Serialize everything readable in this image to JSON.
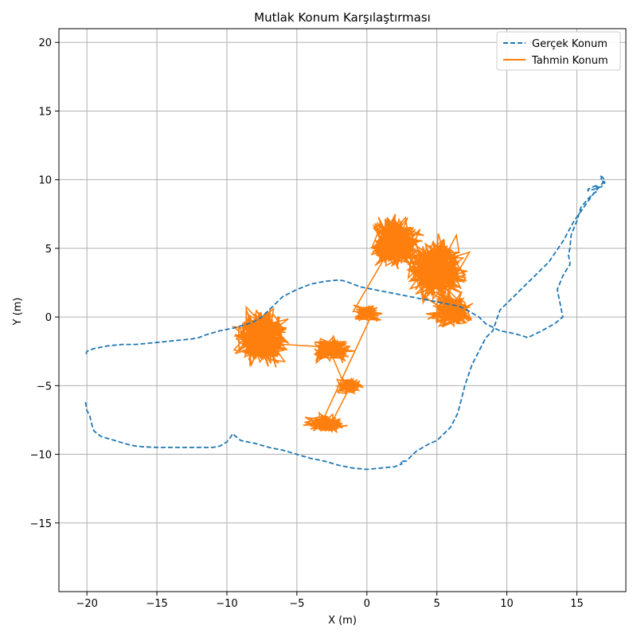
{
  "chart_data": {
    "type": "line",
    "title": "Mutlak Konum Karşılaştırması",
    "xlabel": "X (m)",
    "ylabel": "Y (m)",
    "xlim": [
      -22,
      18.5
    ],
    "ylim": [
      -20,
      21
    ],
    "xticks": [
      -20,
      -15,
      -10,
      -5,
      0,
      5,
      10,
      15
    ],
    "yticks": [
      -15,
      -10,
      -5,
      0,
      5,
      10,
      15,
      20
    ],
    "grid": true,
    "legend_position": "top-right",
    "series": [
      {
        "name": "Gerçek Konum",
        "color": "#1f77b4",
        "style": "dashed",
        "x": [
          -20.1,
          -20.0,
          -19.8,
          -19.7,
          -19.6,
          -19.5,
          -19.0,
          -18.0,
          -17.0,
          -16.5,
          -16.0,
          -15.0,
          -14.0,
          -13.0,
          -12.0,
          -11.0,
          -10.5,
          -10.0,
          -9.7,
          -9.6,
          -9.0,
          -8.0,
          -7.0,
          -6.0,
          -5.0,
          -4.0,
          -3.0,
          -2.0,
          -1.0,
          0.0,
          1.0,
          2.0,
          2.5,
          2.4,
          2.8,
          3.5,
          4.0,
          4.5,
          5.0,
          5.5,
          6.0,
          6.5,
          7.0,
          7.5,
          8.0,
          8.5,
          9.0,
          9.5,
          10.0,
          10.5,
          11.0,
          12.0,
          13.0,
          14.0,
          14.8,
          15.5,
          16.2,
          16.8,
          17.0,
          16.8,
          16.6,
          16.8,
          16.7,
          16.8,
          17.0,
          16.8,
          16.2,
          15.8,
          15.8,
          16.2,
          16.5,
          16.5,
          16.4,
          16.5,
          16.2,
          15.8,
          15.3,
          15.0,
          14.6,
          14.5,
          14.4,
          14.5,
          14.5,
          14.3,
          14.0,
          13.8,
          13.6,
          13.7,
          13.8,
          13.9,
          14.0,
          13.4,
          12.5,
          11.9,
          11.5,
          11.2,
          10.5,
          9.5,
          8.5,
          8.0,
          7.5,
          7.0,
          6.5,
          5.5,
          4.5,
          3.5,
          2.5,
          1.5,
          0.5,
          -0.5,
          -1.0,
          -1.5,
          -2.0,
          -3.0,
          -4.0,
          -5.0,
          -6.0,
          -6.5,
          -7.0,
          -7.5,
          -8.0,
          -8.5,
          -9.5,
          -10.5,
          -11.5,
          -12.0,
          -12.5,
          -13.5,
          -14.5,
          -15.5,
          -16.5,
          -17.5,
          -18.5,
          -19.0,
          -19.5,
          -20.0,
          -20.1
        ],
        "y": [
          -6.2,
          -6.8,
          -7.2,
          -7.6,
          -8.0,
          -8.3,
          -8.7,
          -9.0,
          -9.3,
          -9.4,
          -9.45,
          -9.5,
          -9.5,
          -9.5,
          -9.5,
          -9.5,
          -9.4,
          -9.1,
          -8.7,
          -8.5,
          -9.0,
          -9.2,
          -9.5,
          -9.7,
          -10.0,
          -10.3,
          -10.5,
          -10.8,
          -11.0,
          -11.1,
          -11.0,
          -10.9,
          -10.7,
          -10.5,
          -10.5,
          -9.8,
          -9.5,
          -9.2,
          -9.0,
          -8.5,
          -8.0,
          -7.0,
          -5.0,
          -3.5,
          -2.5,
          -1.5,
          -1.0,
          0.5,
          1.0,
          1.5,
          2.0,
          3.0,
          4.0,
          5.5,
          7.0,
          8.0,
          9.0,
          9.7,
          10.0,
          10.2,
          10.3,
          10.2,
          10.0,
          9.9,
          9.8,
          9.5,
          9.3,
          9.2,
          9.3,
          9.5,
          9.6,
          9.5,
          9.5,
          9.2,
          9.0,
          8.6,
          8.0,
          7.0,
          6.0,
          5.0,
          4.5,
          4.0,
          3.8,
          3.5,
          3.0,
          2.5,
          2.0,
          1.5,
          1.0,
          0.5,
          0.0,
          -0.5,
          -1.0,
          -1.3,
          -1.5,
          -1.4,
          -1.2,
          -1.0,
          -0.5,
          0.0,
          0.3,
          0.6,
          0.8,
          1.0,
          1.2,
          1.4,
          1.6,
          1.8,
          2.0,
          2.2,
          2.4,
          2.6,
          2.7,
          2.6,
          2.4,
          2.0,
          1.5,
          1.0,
          0.5,
          0.0,
          -0.3,
          -0.5,
          -0.8,
          -1.0,
          -1.3,
          -1.5,
          -1.6,
          -1.7,
          -1.8,
          -1.9,
          -2.0,
          -2.0,
          -2.1,
          -2.2,
          -2.3,
          -2.5,
          -2.8
        ]
      },
      {
        "name": "Tahmin Konum",
        "color": "#ff7f0e",
        "style": "solid",
        "clusters": [
          {
            "cx": -7.5,
            "cy": -1.5,
            "rx": 4.0,
            "ry": 4.5,
            "n": 520
          },
          {
            "cx": -2.5,
            "cy": -2.4,
            "rx": 3.3,
            "ry": 1.9,
            "n": 240
          },
          {
            "cx": -1.2,
            "cy": -5.0,
            "rx": 2.2,
            "ry": 1.4,
            "n": 110
          },
          {
            "cx": -3.0,
            "cy": -7.8,
            "rx": 3.0,
            "ry": 1.5,
            "n": 180
          },
          {
            "cx": 0.0,
            "cy": 0.3,
            "rx": 2.6,
            "ry": 1.5,
            "n": 100
          },
          {
            "cx": 2.0,
            "cy": 5.5,
            "rx": 3.8,
            "ry": 4.2,
            "n": 520
          },
          {
            "cx": 5.0,
            "cy": 3.5,
            "rx": 4.6,
            "ry": 5.0,
            "n": 560
          },
          {
            "cx": 6.0,
            "cy": 0.5,
            "rx": 3.5,
            "ry": 2.8,
            "n": 220
          }
        ]
      }
    ]
  }
}
